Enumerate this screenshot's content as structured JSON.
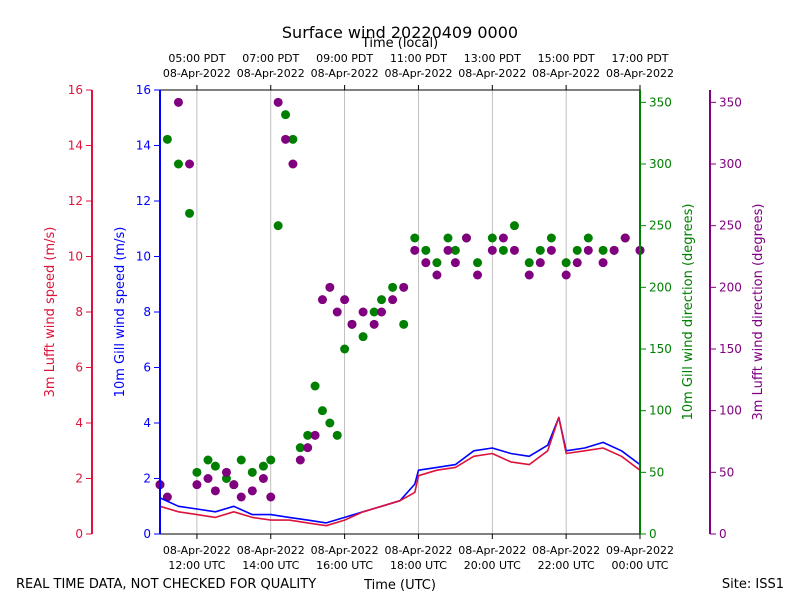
{
  "chart_data": {
    "type": "line",
    "title": "Surface wind 20220409 0000",
    "top_axis_label": "Time (local)",
    "bottom_axis_label": "Time (UTC)",
    "footer_left": "REAL TIME DATA, NOT CHECKED FOR QUALITY",
    "footer_right": "Site: ISS1",
    "x_range_hours_utc": [
      11.0,
      24.0
    ],
    "bottom_ticks": [
      {
        "hour": 12,
        "line1": "08-Apr-2022",
        "line2": "12:00 UTC"
      },
      {
        "hour": 14,
        "line1": "08-Apr-2022",
        "line2": "14:00 UTC"
      },
      {
        "hour": 16,
        "line1": "08-Apr-2022",
        "line2": "16:00 UTC"
      },
      {
        "hour": 18,
        "line1": "08-Apr-2022",
        "line2": "18:00 UTC"
      },
      {
        "hour": 20,
        "line1": "08-Apr-2022",
        "line2": "20:00 UTC"
      },
      {
        "hour": 22,
        "line1": "08-Apr-2022",
        "line2": "22:00 UTC"
      },
      {
        "hour": 24,
        "line1": "09-Apr-2022",
        "line2": "00:00 UTC"
      }
    ],
    "top_ticks": [
      {
        "hour": 12,
        "line1": "05:00 PDT",
        "line2": "08-Apr-2022"
      },
      {
        "hour": 14,
        "line1": "07:00 PDT",
        "line2": "08-Apr-2022"
      },
      {
        "hour": 16,
        "line1": "09:00 PDT",
        "line2": "08-Apr-2022"
      },
      {
        "hour": 18,
        "line1": "11:00 PDT",
        "line2": "08-Apr-2022"
      },
      {
        "hour": 20,
        "line1": "13:00 PDT",
        "line2": "08-Apr-2022"
      },
      {
        "hour": 22,
        "line1": "15:00 PDT",
        "line2": "08-Apr-2022"
      },
      {
        "hour": 24,
        "line1": "17:00 PDT",
        "line2": "08-Apr-2022"
      }
    ],
    "axes": {
      "lufft_speed": {
        "label": "3m Lufft wind speed (m/s)",
        "color": "#dc143c",
        "ylim": [
          0,
          16
        ],
        "ticks": [
          "0",
          "2",
          "4",
          "6",
          "8",
          "10",
          "12",
          "14",
          "16"
        ]
      },
      "gill_speed": {
        "label": "10m Gill wind speed (m/s)",
        "color": "#0000ff",
        "ylim": [
          0,
          16
        ],
        "ticks": [
          "0",
          "2",
          "4",
          "6",
          "8",
          "10",
          "12",
          "14",
          "16"
        ]
      },
      "gill_dir": {
        "label": "10m Gill wind direction (degrees)",
        "color": "#008000",
        "ylim": [
          0,
          360
        ],
        "ticks": [
          "0",
          "50",
          "100",
          "150",
          "200",
          "250",
          "300",
          "350"
        ]
      },
      "lufft_dir": {
        "label": "3m Lufft wind direction (degrees)",
        "color": "#800080",
        "ylim": [
          0,
          360
        ],
        "ticks": [
          "0",
          "50",
          "100",
          "150",
          "200",
          "250",
          "300",
          "350"
        ]
      }
    },
    "series": [
      {
        "name": "10m Gill wind speed",
        "kind": "line",
        "axis": "gill_speed",
        "color": "#0000ff",
        "x": [
          11.0,
          11.5,
          12.0,
          12.5,
          13.0,
          13.5,
          14.0,
          14.5,
          15.0,
          15.5,
          16.0,
          16.5,
          17.0,
          17.5,
          17.9,
          18.0,
          18.5,
          19.0,
          19.5,
          20.0,
          20.5,
          21.0,
          21.5,
          21.8,
          22.0,
          22.5,
          23.0,
          23.5,
          24.0
        ],
        "y": [
          1.3,
          1.0,
          0.9,
          0.8,
          1.0,
          0.7,
          0.7,
          0.6,
          0.5,
          0.4,
          0.6,
          0.8,
          1.0,
          1.2,
          1.8,
          2.3,
          2.4,
          2.5,
          3.0,
          3.1,
          2.9,
          2.8,
          3.2,
          4.2,
          3.0,
          3.1,
          3.3,
          3.0,
          2.5
        ]
      },
      {
        "name": "3m Lufft wind speed",
        "kind": "line",
        "axis": "lufft_speed",
        "color": "#dc143c",
        "x": [
          11.0,
          11.5,
          12.0,
          12.5,
          13.0,
          13.5,
          14.0,
          14.5,
          15.0,
          15.5,
          16.0,
          16.5,
          17.0,
          17.5,
          17.9,
          18.0,
          18.5,
          19.0,
          19.5,
          20.0,
          20.5,
          21.0,
          21.5,
          21.8,
          22.0,
          22.5,
          23.0,
          23.5,
          24.0
        ],
        "y": [
          1.0,
          0.8,
          0.7,
          0.6,
          0.8,
          0.6,
          0.5,
          0.5,
          0.4,
          0.3,
          0.5,
          0.8,
          1.0,
          1.2,
          1.5,
          2.1,
          2.3,
          2.4,
          2.8,
          2.9,
          2.6,
          2.5,
          3.0,
          4.2,
          2.9,
          3.0,
          3.1,
          2.8,
          2.3
        ]
      },
      {
        "name": "10m Gill wind direction",
        "kind": "scatter",
        "axis": "gill_dir",
        "color": "#008000",
        "x": [
          11.0,
          11.2,
          11.5,
          11.8,
          12.0,
          12.3,
          12.5,
          12.8,
          13.0,
          13.2,
          13.5,
          13.8,
          14.0,
          14.2,
          14.4,
          14.6,
          14.8,
          15.0,
          15.2,
          15.4,
          15.6,
          15.8,
          16.0,
          16.2,
          16.5,
          16.8,
          17.0,
          17.3,
          17.6,
          17.9,
          18.2,
          18.5,
          18.8,
          19.0,
          19.3,
          19.6,
          20.0,
          20.3,
          20.6,
          21.0,
          21.3,
          21.6,
          22.0,
          22.3,
          22.6,
          23.0,
          23.3,
          23.6,
          24.0
        ],
        "y": [
          40,
          320,
          300,
          260,
          50,
          60,
          55,
          45,
          40,
          60,
          50,
          55,
          60,
          250,
          340,
          320,
          70,
          80,
          120,
          100,
          90,
          80,
          150,
          170,
          160,
          180,
          190,
          200,
          170,
          240,
          230,
          220,
          240,
          230,
          240,
          220,
          240,
          230,
          250,
          220,
          230,
          240,
          220,
          230,
          240,
          230,
          230,
          240,
          230
        ]
      },
      {
        "name": "3m Lufft wind direction",
        "kind": "scatter",
        "axis": "lufft_dir",
        "color": "#800080",
        "x": [
          11.0,
          11.2,
          11.5,
          11.8,
          12.0,
          12.3,
          12.5,
          12.8,
          13.0,
          13.2,
          13.5,
          13.8,
          14.0,
          14.2,
          14.4,
          14.6,
          14.8,
          15.0,
          15.2,
          15.4,
          15.6,
          15.8,
          16.0,
          16.2,
          16.5,
          16.8,
          17.0,
          17.3,
          17.6,
          17.9,
          18.2,
          18.5,
          18.8,
          19.0,
          19.3,
          19.6,
          20.0,
          20.3,
          20.6,
          21.0,
          21.3,
          21.6,
          22.0,
          22.3,
          22.6,
          23.0,
          23.3,
          23.6,
          24.0
        ],
        "y": [
          40,
          30,
          350,
          300,
          40,
          45,
          35,
          50,
          40,
          30,
          35,
          45,
          30,
          350,
          320,
          300,
          60,
          70,
          80,
          190,
          200,
          180,
          190,
          170,
          180,
          170,
          180,
          190,
          200,
          230,
          220,
          210,
          230,
          220,
          240,
          210,
          230,
          240,
          230,
          210,
          220,
          230,
          210,
          220,
          230,
          220,
          230,
          240,
          230
        ]
      }
    ]
  }
}
